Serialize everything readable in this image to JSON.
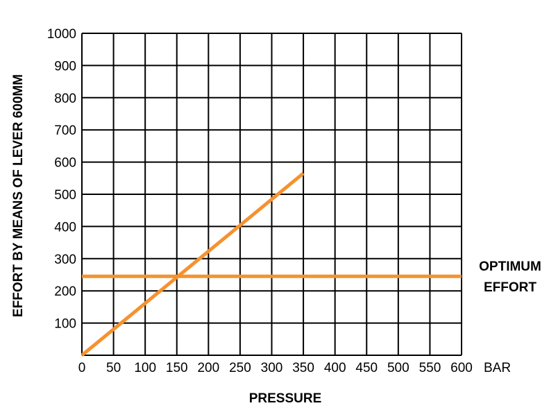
{
  "chart_data": {
    "type": "line",
    "xlabel": "PRESSURE",
    "ylabel": "EFFORT BY MEANS OF LEVER 600MM",
    "x_unit": "BAR",
    "xlim": [
      0,
      600
    ],
    "ylim": [
      0,
      1000
    ],
    "x_ticks": [
      "0",
      "50",
      "100",
      "150",
      "200",
      "250",
      "300",
      "350",
      "400",
      "450",
      "500",
      "550",
      "600"
    ],
    "y_ticks": [
      "100",
      "200",
      "300",
      "400",
      "500",
      "600",
      "700",
      "800",
      "900",
      "1000"
    ],
    "grid": true,
    "series": [
      {
        "x": [
          0,
          350
        ],
        "y": [
          0,
          565
        ],
        "color": "#F5922F"
      },
      {
        "name": "OPTIMUM EFFORT",
        "x": [
          0,
          600
        ],
        "y": [
          245,
          245
        ],
        "color": "#F5922F"
      }
    ],
    "annotations": [
      {
        "text_lines": [
          "OPTIMUM",
          "EFFORT"
        ],
        "anchor": "right-of-plot",
        "series_index": 1
      }
    ]
  }
}
